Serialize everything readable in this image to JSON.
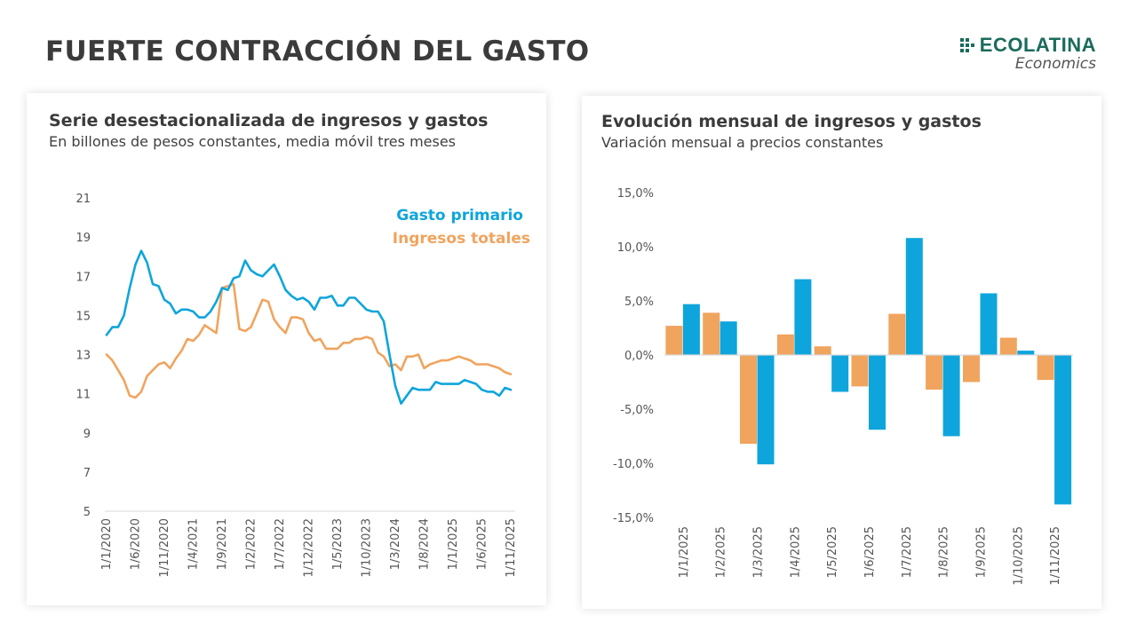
{
  "header": {
    "title": "FUERTE CONTRACCIÓN DEL GASTO",
    "logo_word": "ECOLATINA",
    "logo_sub": "Economics"
  },
  "colors": {
    "gasto": "#0ea5dc",
    "ingresos": "#f0a45e",
    "axis": "#d9d9d9",
    "logo": "#1b6b5c"
  },
  "chart_data": [
    {
      "type": "line",
      "title": "Serie desestacionalizada de ingresos y gastos",
      "subtitle": "En billones de pesos constantes, media móvil tres meses",
      "xlabel": "",
      "ylabel": "",
      "ylim": [
        5,
        21
      ],
      "yticks": [
        5,
        7,
        9,
        11,
        13,
        15,
        17,
        19,
        21
      ],
      "grid": false,
      "legend_position": "top-right",
      "x_start": "1/1/2020",
      "x_frequency": "monthly",
      "x_count": 71,
      "xtick_labels": [
        "1/1/2020",
        "1/6/2020",
        "1/11/2020",
        "1/4/2021",
        "1/9/2021",
        "1/2/2022",
        "1/7/2022",
        "1/12/2022",
        "1/5/2023",
        "1/10/2023",
        "1/3/2024",
        "1/8/2024",
        "1/1/2025",
        "1/6/2025",
        "1/11/2025"
      ],
      "xtick_indices": [
        0,
        5,
        10,
        15,
        20,
        25,
        30,
        35,
        40,
        45,
        50,
        55,
        60,
        65,
        70
      ],
      "series": [
        {
          "name": "Gasto primario",
          "color_key": "gasto",
          "values": [
            14.0,
            14.4,
            14.4,
            15.0,
            16.4,
            17.6,
            18.3,
            17.7,
            16.6,
            16.5,
            15.8,
            15.6,
            15.1,
            15.3,
            15.3,
            15.2,
            14.9,
            14.9,
            15.2,
            15.7,
            16.4,
            16.3,
            16.9,
            17.0,
            17.8,
            17.3,
            17.1,
            17.0,
            17.3,
            17.6,
            17.0,
            16.3,
            16.0,
            15.8,
            15.9,
            15.7,
            15.3,
            15.9,
            15.9,
            16.0,
            15.5,
            15.5,
            15.9,
            15.9,
            15.6,
            15.3,
            15.2,
            15.2,
            14.7,
            13.0,
            11.4,
            10.5,
            10.9,
            11.3,
            11.2,
            11.2,
            11.2,
            11.6,
            11.5,
            11.5,
            11.5,
            11.5,
            11.7,
            11.6,
            11.5,
            11.2,
            11.1,
            11.1,
            10.9,
            11.3,
            11.2
          ]
        },
        {
          "name": "Ingresos totales",
          "color_key": "ingresos",
          "values": [
            13.0,
            12.7,
            12.2,
            11.7,
            10.9,
            10.8,
            11.1,
            11.9,
            12.2,
            12.5,
            12.6,
            12.3,
            12.8,
            13.2,
            13.8,
            13.7,
            14.0,
            14.5,
            14.3,
            14.1,
            16.4,
            16.5,
            16.6,
            14.3,
            14.2,
            14.4,
            15.1,
            15.8,
            15.7,
            14.8,
            14.4,
            14.1,
            14.9,
            14.9,
            14.8,
            14.1,
            13.7,
            13.8,
            13.3,
            13.3,
            13.3,
            13.6,
            13.6,
            13.8,
            13.8,
            13.9,
            13.8,
            13.1,
            12.9,
            12.4,
            12.5,
            12.2,
            12.9,
            12.9,
            13.0,
            12.3,
            12.5,
            12.6,
            12.7,
            12.7,
            12.8,
            12.9,
            12.8,
            12.7,
            12.5,
            12.5,
            12.5,
            12.4,
            12.3,
            12.1,
            12.0
          ]
        }
      ]
    },
    {
      "type": "bar",
      "title": "Evolución mensual de ingresos y gastos",
      "subtitle": "Variación mensual a precios constantes",
      "xlabel": "",
      "ylabel": "",
      "ylim": [
        -15,
        15
      ],
      "yticks": [
        15,
        10,
        5,
        0,
        -5,
        -10,
        -15
      ],
      "ytick_labels": [
        "15,0%",
        "10,0%",
        "5,0%",
        "0,0%",
        "-5,0%",
        "-10,0%",
        "-15,0%"
      ],
      "grid": false,
      "legend": "none",
      "categories": [
        "1/1/2025",
        "1/2/2025",
        "1/3/2025",
        "1/4/2025",
        "1/5/2025",
        "1/6/2025",
        "1/7/2025",
        "1/8/2025",
        "1/9/2025",
        "1/10/2025",
        "1/11/2025"
      ],
      "series": [
        {
          "name": "Ingresos totales",
          "color_key": "ingresos",
          "values": [
            2.7,
            3.9,
            -8.2,
            1.9,
            0.8,
            -2.9,
            3.8,
            -3.2,
            -2.5,
            1.6,
            -2.3
          ]
        },
        {
          "name": "Gasto primario",
          "color_key": "gasto",
          "values": [
            4.7,
            3.1,
            -10.1,
            7.0,
            -3.4,
            -6.9,
            10.8,
            -7.5,
            5.7,
            0.4,
            -13.8
          ]
        }
      ]
    }
  ]
}
